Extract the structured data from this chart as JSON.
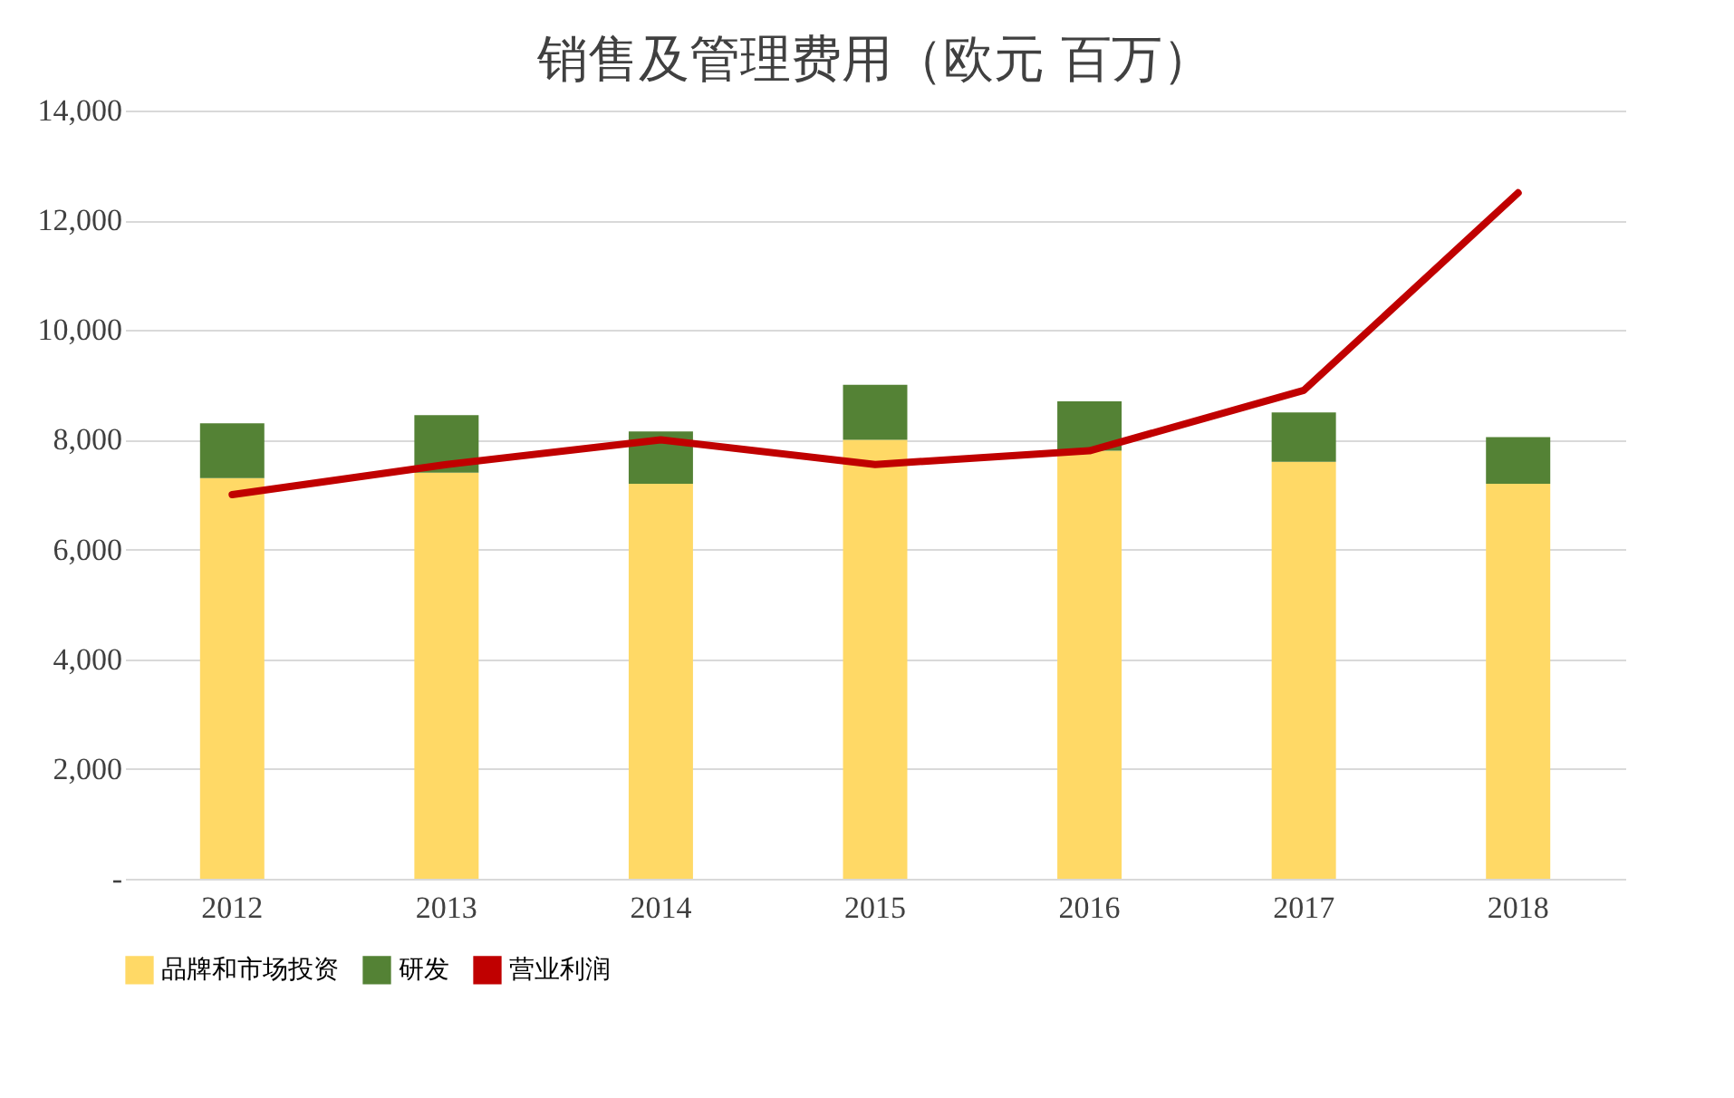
{
  "chart_data": {
    "type": "bar",
    "title": "销售及管理费用（欧元 百万）",
    "stacked": true,
    "categories": [
      "2012",
      "2013",
      "2014",
      "2015",
      "2016",
      "2017",
      "2018"
    ],
    "series": [
      {
        "name": "品牌和市场投资",
        "color": "#ffd966",
        "values": [
          7300,
          7400,
          7200,
          8000,
          7800,
          7600,
          7200
        ]
      },
      {
        "name": "研发",
        "color": "#548235",
        "values": [
          1000,
          1050,
          950,
          1000,
          900,
          900,
          850
        ]
      },
      {
        "name": "营业利润",
        "type": "line",
        "color": "#c00000",
        "values": [
          7000,
          7550,
          8000,
          7550,
          7800,
          8900,
          12500
        ]
      }
    ],
    "ylim": [
      0,
      14000
    ],
    "yticks": [
      {
        "value": 0,
        "label": "-"
      },
      {
        "value": 2000,
        "label": "2,000"
      },
      {
        "value": 4000,
        "label": "4,000"
      },
      {
        "value": 6000,
        "label": "6,000"
      },
      {
        "value": 8000,
        "label": "8,000"
      },
      {
        "value": 10000,
        "label": "10,000"
      },
      {
        "value": 12000,
        "label": "12,000"
      },
      {
        "value": 14000,
        "label": "14,000"
      }
    ],
    "grid": "y",
    "legend": "bottom"
  }
}
